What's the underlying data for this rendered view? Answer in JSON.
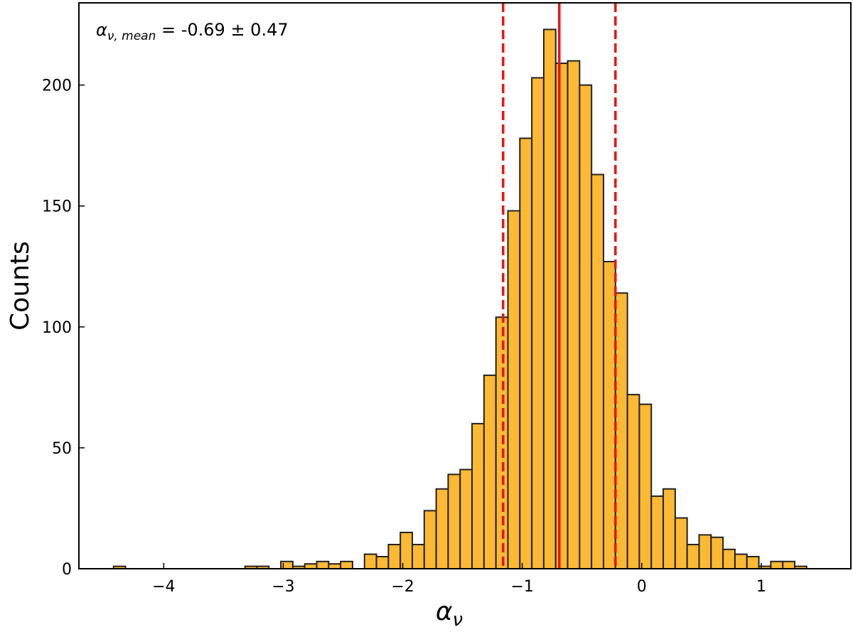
{
  "chart_data": {
    "type": "histogram",
    "xlabel": {
      "base": "α",
      "sub": "ν"
    },
    "ylabel": "Counts",
    "annotation": {
      "base": "α",
      "sub": "ν, mean",
      "text": " = -0.69 ± 0.47"
    },
    "bins": [
      -4.42,
      -4.32,
      -4.22,
      -4.12,
      -4.02,
      -3.92,
      -3.82,
      -3.72,
      -3.62,
      -3.52,
      -3.42,
      -3.32,
      -3.22,
      -3.12,
      -3.02,
      -2.92,
      -2.82,
      -2.72,
      -2.62,
      -2.52,
      -2.42,
      -2.32,
      -2.22,
      -2.12,
      -2.02,
      -1.92,
      -1.82,
      -1.72,
      -1.62,
      -1.52,
      -1.42,
      -1.32,
      -1.22,
      -1.12,
      -1.02,
      -0.92,
      -0.82,
      -0.72,
      -0.62,
      -0.52,
      -0.42,
      -0.32,
      -0.22,
      -0.12,
      -0.02,
      0.08,
      0.18,
      0.28,
      0.38,
      0.48,
      0.58,
      0.68,
      0.78,
      0.88,
      0.98,
      1.08,
      1.18,
      1.28,
      1.38
    ],
    "values": [
      1,
      0,
      0,
      0,
      0,
      0,
      0,
      0,
      0,
      0,
      0,
      1,
      1,
      0,
      3,
      1,
      2,
      3,
      2,
      3,
      0,
      6,
      5,
      10,
      15,
      10,
      24,
      33,
      39,
      41,
      60,
      80,
      104,
      148,
      178,
      203,
      223,
      209,
      210,
      200,
      163,
      127,
      114,
      72,
      68,
      30,
      33,
      21,
      10,
      14,
      13,
      8,
      6,
      5,
      1,
      3,
      3,
      1
    ],
    "color": "#fdb933",
    "edgecolor": "#222222",
    "vlines": [
      {
        "value": -0.69,
        "style": "solid",
        "color": "#ee1111"
      },
      {
        "value": -1.16,
        "style": "dashed",
        "color": "#ee1111"
      },
      {
        "value": -0.22,
        "style": "dashed",
        "color": "#ee1111"
      }
    ],
    "xlim": [
      -4.71,
      1.75
    ],
    "ylim": [
      0,
      234
    ],
    "xticks": [
      {
        "value": -4,
        "label": "−4"
      },
      {
        "value": -3,
        "label": "−3"
      },
      {
        "value": -2,
        "label": "−2"
      },
      {
        "value": -1,
        "label": "−1"
      },
      0,
      1
    ],
    "yticks": [
      0,
      50,
      100,
      150,
      200
    ]
  }
}
